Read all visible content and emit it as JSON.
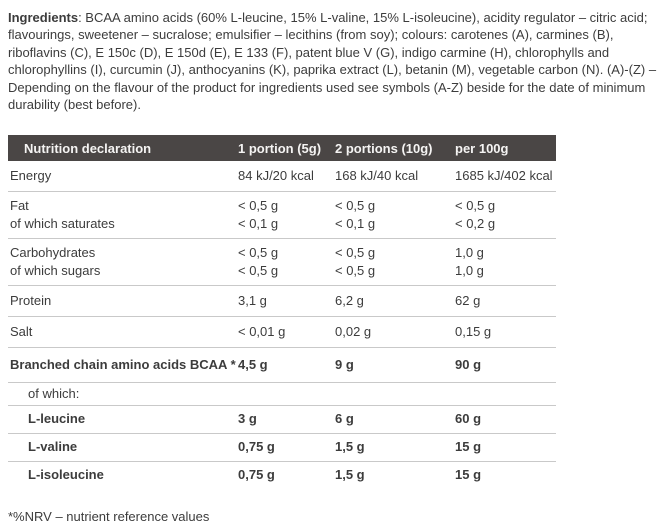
{
  "ingredients": {
    "label": "Ingredients",
    "text": ": BCAA amino acids (60% L-leucine, 15% L-valine, 15% L-isoleucine), acidity regulator – citric acid; flavourings, sweetener – sucralose; emulsifier – lecithins (from soy); colours: carotenes (A), carmines (B), riboflavins (C), E 150c (D), E 150d (E), E 133 (F), patent blue V (G), indigo carmine (H), chlorophylls and chlorophyllins (I), curcumin (J), anthocyanins (K), paprika extract (L), betanin (M), vegetable carbon (N). (A)-(Z) – Depending on the flavour of the product for ingredients used see symbols (A-Z) beside for the date of minimum durability (best before)."
  },
  "table": {
    "headers": [
      "Nutrition declaration",
      "1 portion (5g)",
      "2 portions (10g)",
      "per 100g"
    ],
    "rows": [
      {
        "label": "Energy",
        "values": [
          "84 kJ/20 kcal",
          "168 kJ/40 kcal",
          "1685 kJ/402 kcal"
        ],
        "bold": false,
        "indent": false,
        "cls": "row-single"
      },
      {
        "label": "Fat",
        "values": [
          "< 0,5 g",
          "< 0,5 g",
          "< 0,5 g"
        ],
        "bold": false,
        "indent": false,
        "cls": "row-first"
      },
      {
        "label": "of which saturates",
        "values": [
          "< 0,1 g",
          "< 0,1 g",
          "< 0,2 g"
        ],
        "bold": false,
        "indent": false,
        "cls": "row-last"
      },
      {
        "label": "Carbohydrates",
        "values": [
          "< 0,5 g",
          "< 0,5 g",
          "1,0 g"
        ],
        "bold": false,
        "indent": false,
        "cls": "row-first"
      },
      {
        "label": "of which sugars",
        "values": [
          "< 0,5 g",
          "< 0,5 g",
          "1,0 g"
        ],
        "bold": false,
        "indent": false,
        "cls": "row-last"
      },
      {
        "label": "Protein",
        "values": [
          "3,1 g",
          "6,2 g",
          "62 g"
        ],
        "bold": false,
        "indent": false,
        "cls": "row-single"
      },
      {
        "label": "Salt",
        "values": [
          "< 0,01 g",
          "0,02 g",
          "0,15 g"
        ],
        "bold": false,
        "indent": false,
        "cls": "row-single"
      },
      {
        "label": "Branched chain amino acids BCAA *",
        "values": [
          "4,5 g",
          "9 g",
          "90 g"
        ],
        "bold": true,
        "indent": false,
        "cls": "row-big"
      },
      {
        "label": "of which:",
        "values": [
          "",
          "",
          ""
        ],
        "bold": false,
        "indent": true,
        "cls": "row-small"
      },
      {
        "label": "L-leucine",
        "values": [
          "3 g",
          "6 g",
          "60 g"
        ],
        "bold": true,
        "indent": true,
        "cls": "row-sub"
      },
      {
        "label": "L-valine",
        "values": [
          "0,75 g",
          "1,5 g",
          "15 g"
        ],
        "bold": true,
        "indent": true,
        "cls": "row-sub"
      },
      {
        "label": "L-isoleucine",
        "values": [
          "0,75 g",
          "1,5 g",
          "15 g"
        ],
        "bold": true,
        "indent": true,
        "cls": "row-sub row-noborder"
      }
    ]
  },
  "footnote": "*%NRV – nutrient reference values",
  "colors": {
    "header_bg": "#4a4645",
    "header_text": "#f5f4f3",
    "body_text": "#3c3c3c",
    "border": "#c9c9c9"
  }
}
